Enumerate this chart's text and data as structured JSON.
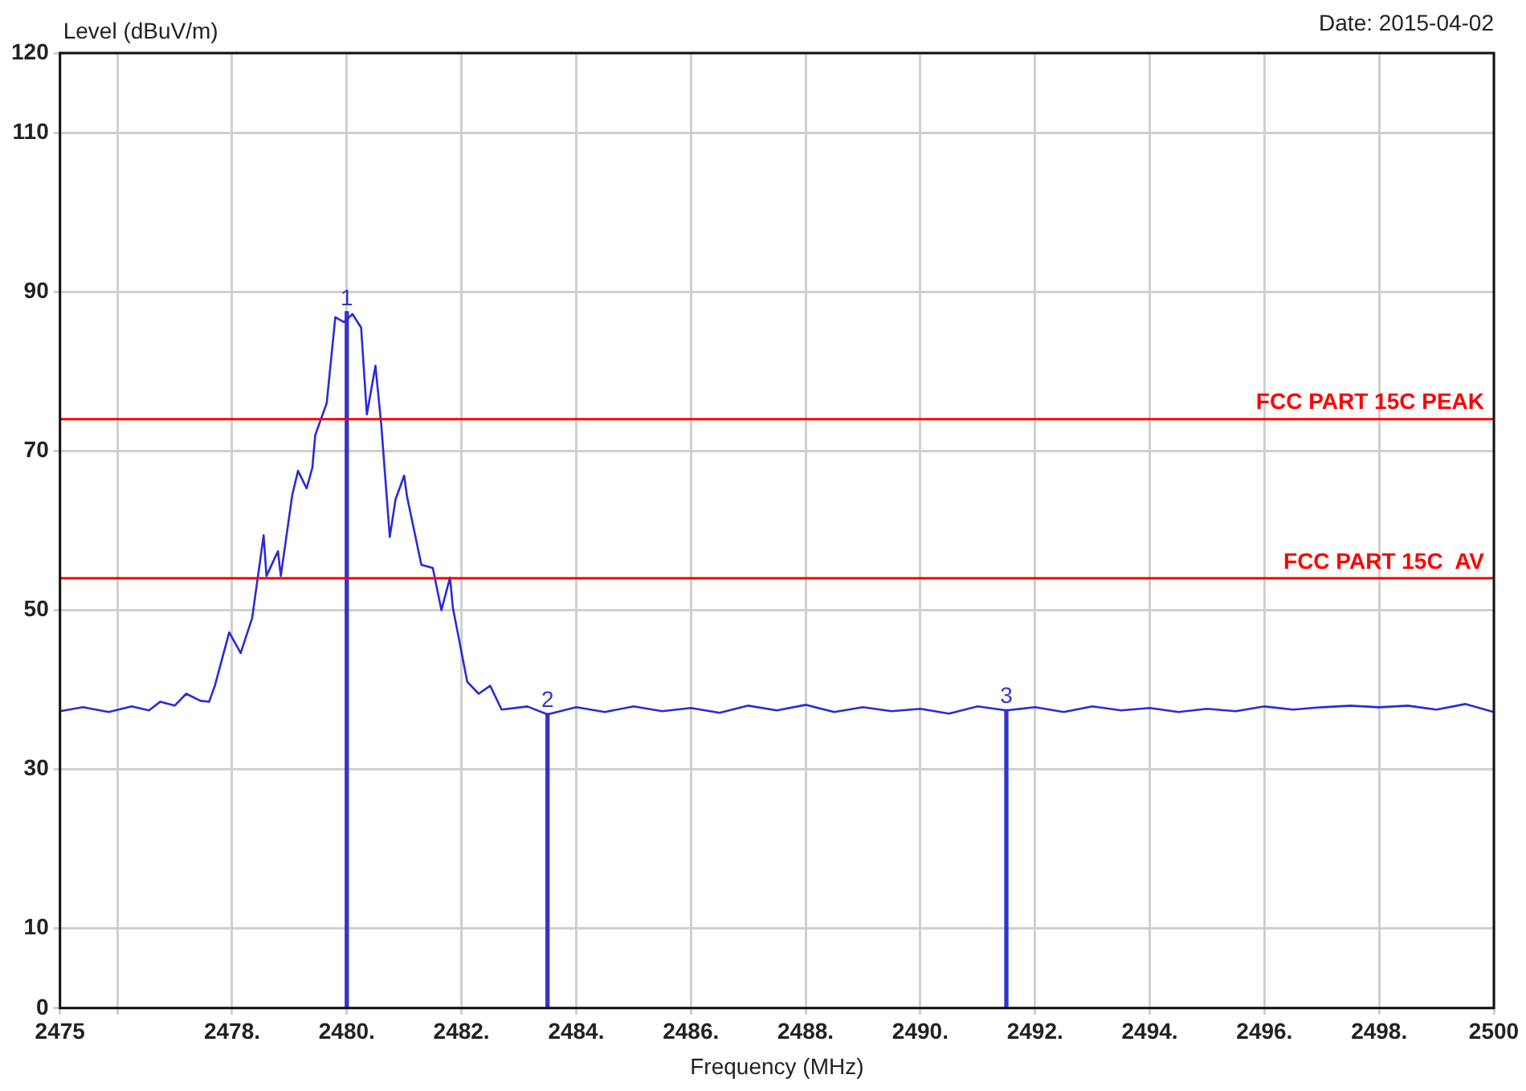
{
  "chart_data": {
    "type": "line",
    "xlabel": "Frequency (MHz)",
    "ylabel": "Level (dBuV/m)",
    "annotations": [
      "Date: 2015-04-02",
      {
        "text": "1",
        "x": 2480.0,
        "y": 87.5
      },
      {
        "text": "2",
        "x": 2483.5,
        "y": 37
      },
      {
        "text": "3",
        "x": 2491.5,
        "y": 37.5
      }
    ],
    "xlim": [
      2475,
      2500
    ],
    "xticks": [
      2475,
      {
        "value": 2476,
        "label": null
      },
      {
        "value": 2478,
        "label": "2478."
      },
      {
        "value": 2480,
        "label": "2480."
      },
      {
        "value": 2482,
        "label": "2482."
      },
      {
        "value": 2484,
        "label": "2484."
      },
      {
        "value": 2486,
        "label": "2486."
      },
      {
        "value": 2488,
        "label": "2488."
      },
      {
        "value": 2490,
        "label": "2490."
      },
      {
        "value": 2492,
        "label": "2492."
      },
      {
        "value": 2494,
        "label": "2494."
      },
      {
        "value": 2496,
        "label": "2496."
      },
      {
        "value": 2498,
        "label": "2498."
      },
      2500
    ],
    "ylim": [
      0,
      120
    ],
    "yticks": [
      0,
      10,
      30,
      50,
      70,
      90,
      110,
      120
    ],
    "grid": true,
    "legend": false,
    "marker": "none",
    "line_style": "solid",
    "ref_lines": [
      {
        "axis": "y",
        "value": 74,
        "label": "FCC PART 15C PEAK",
        "color": "#ff0000"
      },
      {
        "axis": "y",
        "value": 54,
        "label": "FCC PART 15C  AV",
        "color": "#ff0000"
      }
    ],
    "series": [
      {
        "color": "#2a2ad8",
        "x": [
          2475.0,
          2475.4,
          2475.85,
          2476.25,
          2476.55,
          2476.75,
          2477.0,
          2477.2,
          2477.45,
          2477.6,
          2477.7,
          2477.95,
          2478.15,
          2478.35,
          2478.55,
          2478.6,
          2478.8,
          2478.85,
          2479.05,
          2479.15,
          2479.3,
          2479.4,
          2479.45,
          2479.65,
          2479.8,
          2479.95,
          2480.1,
          2480.25,
          2480.35,
          2480.5,
          2480.6,
          2480.75,
          2480.85,
          2481.0,
          2481.05,
          2481.3,
          2481.5,
          2481.65,
          2481.8,
          2481.85,
          2482.1,
          2482.3,
          2482.5,
          2482.7,
          2483.15,
          2483.5,
          2484.0,
          2484.5,
          2485.0,
          2485.5,
          2486.0,
          2486.5,
          2487.0,
          2487.5,
          2488.0,
          2488.5,
          2489.0,
          2489.5,
          2490.0,
          2490.5,
          2491.0,
          2491.5,
          2492.0,
          2492.5,
          2493.0,
          2493.5,
          2494.0,
          2494.5,
          2495.0,
          2495.5,
          2496.0,
          2496.5,
          2497.0,
          2497.5,
          2498.0,
          2498.5,
          2499.0,
          2499.5,
          2500.0
        ],
        "values": [
          37.3,
          37.8,
          37.2,
          37.9,
          37.4,
          38.5,
          38.0,
          39.5,
          38.6,
          38.5,
          40.5,
          47.2,
          44.6,
          49,
          59.4,
          54.3,
          57.4,
          54.3,
          64.5,
          67.5,
          65.3,
          67.9,
          72,
          76,
          86.8,
          86.2,
          87.2,
          85.5,
          74.6,
          80.7,
          73.4,
          59.2,
          63.9,
          66.9,
          64.3,
          55.7,
          55.3,
          50,
          54.1,
          50.3,
          41,
          39.5,
          40.5,
          37.5,
          37.9,
          36.9,
          37.8,
          37.2,
          37.9,
          37.3,
          37.7,
          37.1,
          38.0,
          37.4,
          38.1,
          37.2,
          37.8,
          37.3,
          37.6,
          37.0,
          37.9,
          37.4,
          37.8,
          37.2,
          37.9,
          37.4,
          37.7,
          37.2,
          37.6,
          37.3,
          37.9,
          37.5,
          37.8,
          38.0,
          37.8,
          38.0,
          37.5,
          38.2,
          37.2
        ]
      },
      {
        "type": "bar",
        "color": "#3434c8",
        "x": [
          2480.0,
          2483.5,
          2491.5
        ],
        "values": [
          87.5,
          37,
          37.5
        ]
      }
    ]
  }
}
